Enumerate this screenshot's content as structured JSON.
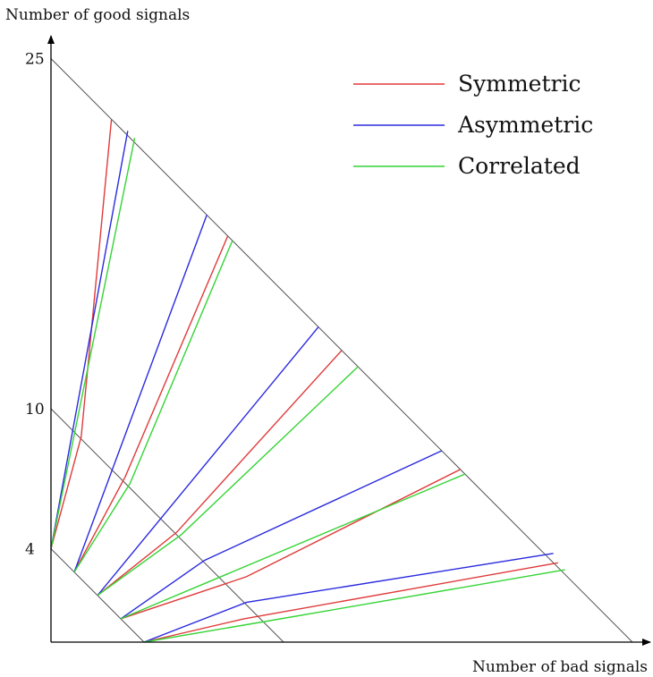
{
  "chart_data": {
    "type": "line",
    "title": "",
    "xlabel": "Number of bad signals",
    "ylabel": "Number of good signals",
    "xlim": [
      0,
      25
    ],
    "ylim": [
      0,
      25
    ],
    "y_ticks": [
      "25",
      "10",
      "4"
    ],
    "y_tick_values": [
      25,
      10,
      4
    ],
    "grid": false,
    "legend_position": "top-right",
    "boundary_lines": [
      {
        "from": [
          0,
          25
        ],
        "to": [
          25,
          0
        ]
      },
      {
        "from": [
          0,
          10
        ],
        "to": [
          10,
          0
        ]
      },
      {
        "from": [
          0,
          4
        ],
        "to": [
          4,
          0
        ]
      }
    ],
    "series": [
      {
        "name": "Symmetric",
        "color": "#e03a3a",
        "paths": [
          [
            [
              0,
              4
            ],
            [
              1.3,
              8.8
            ],
            [
              2.6,
              22.4
            ]
          ],
          [
            [
              1,
              3
            ],
            [
              3.2,
              7.1
            ],
            [
              7.6,
              17.4
            ]
          ],
          [
            [
              2,
              2
            ],
            [
              5.4,
              4.7
            ],
            [
              12.5,
              12.5
            ]
          ],
          [
            [
              3,
              1
            ],
            [
              8.4,
              2.8
            ],
            [
              17.6,
              7.4
            ]
          ],
          [
            [
              4,
              0
            ],
            [
              8.3,
              1.0
            ],
            [
              21.8,
              3.4
            ]
          ]
        ]
      },
      {
        "name": "Asymmetric",
        "color": "#2a2adf",
        "paths": [
          [
            [
              0,
              4
            ],
            [
              3.3,
              21.9
            ]
          ],
          [
            [
              1,
              3
            ],
            [
              6.7,
              18.3
            ]
          ],
          [
            [
              2,
              2
            ],
            [
              11.5,
              13.5
            ]
          ],
          [
            [
              3,
              1
            ],
            [
              6.6,
              3.5
            ],
            [
              16.8,
              8.2
            ]
          ],
          [
            [
              4,
              0
            ],
            [
              8.4,
              1.7
            ],
            [
              21.6,
              3.8
            ]
          ]
        ]
      },
      {
        "name": "Correlated",
        "color": "#35d435",
        "paths": [
          [
            [
              0,
              4
            ],
            [
              3.6,
              21.6
            ]
          ],
          [
            [
              1,
              3
            ],
            [
              3.4,
              6.8
            ],
            [
              7.8,
              17.2
            ]
          ],
          [
            [
              2,
              2
            ],
            [
              5.6,
              4.6
            ],
            [
              13.2,
              11.8
            ]
          ],
          [
            [
              3,
              1
            ],
            [
              17.8,
              7.2
            ]
          ],
          [
            [
              4,
              0
            ],
            [
              9.3,
              0.9
            ],
            [
              22.1,
              3.1
            ]
          ]
        ]
      }
    ]
  }
}
